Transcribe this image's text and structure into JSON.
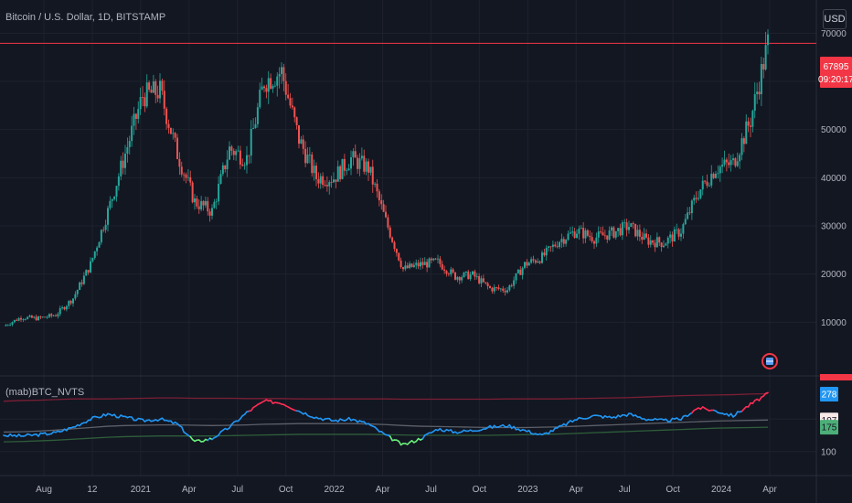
{
  "header": {
    "title": "Bitcoin / U.S. Dollar, 1D, BITSTAMP",
    "currency_button": "USD"
  },
  "price_axis": {
    "ticks": [
      "70000",
      "60000",
      "50000",
      "40000",
      "30000",
      "20000",
      "10000"
    ],
    "last_price": "67895",
    "countdown": "09:20:17"
  },
  "indicator": {
    "name": "(mab)BTC_NVTS",
    "ticks": [
      "200",
      "100"
    ],
    "badges": [
      {
        "text": "278",
        "color": "#2196f3",
        "text_color": "#ffffff"
      },
      {
        "text": "197",
        "color": "#f8e8e8",
        "text_color": "#131722"
      },
      {
        "text": "175",
        "color": "#4caf78",
        "text_color": "#131722"
      }
    ]
  },
  "time_axis": [
    "Aug",
    "12",
    "2021",
    "Apr",
    "Jul",
    "Oct",
    "2022",
    "Apr",
    "Jul",
    "Oct",
    "2023",
    "Apr",
    "Jul",
    "Oct",
    "2024",
    "Apr"
  ],
  "colors": {
    "background": "#131722",
    "up": "#26a69a",
    "down": "#ef5350",
    "last_price_line": "#f23645",
    "nvts": "#2196f3",
    "nvts_high": "#ff2d55",
    "nvts_low": "#69f07a",
    "upper_band": "#7a1f35",
    "mid_band": "#5d6068",
    "lower_band": "#2e5e3a"
  },
  "chart_data": [
    {
      "type": "candlestick",
      "title": "Bitcoin / U.S. Dollar, 1D, BITSTAMP",
      "x": [
        "2020-07",
        "2020-08",
        "2020-09",
        "2020-10",
        "2020-11",
        "2020-12",
        "2021-01",
        "2021-02",
        "2021-03",
        "2021-04",
        "2021-05",
        "2021-06",
        "2021-07",
        "2021-08",
        "2021-09",
        "2021-10",
        "2021-11",
        "2021-12",
        "2022-01",
        "2022-02",
        "2022-03",
        "2022-04",
        "2022-05",
        "2022-06",
        "2022-07",
        "2022-08",
        "2022-09",
        "2022-10",
        "2022-11",
        "2022-12",
        "2023-01",
        "2023-02",
        "2023-03",
        "2023-04",
        "2023-05",
        "2023-06",
        "2023-07",
        "2023-08",
        "2023-09",
        "2023-10",
        "2023-11",
        "2023-12",
        "2024-01",
        "2024-02",
        "2024-03"
      ],
      "values": [
        9200,
        11000,
        10800,
        11500,
        15000,
        22000,
        33000,
        45000,
        57000,
        58000,
        45000,
        35000,
        33000,
        46000,
        44000,
        60000,
        62000,
        48000,
        40000,
        40000,
        44000,
        42000,
        31000,
        21000,
        22000,
        22500,
        19500,
        19800,
        17000,
        16800,
        22000,
        23500,
        27000,
        29000,
        27500,
        28500,
        30000,
        27000,
        26500,
        29000,
        37000,
        42000,
        43000,
        52000,
        67895
      ],
      "ylim": [
        0,
        75000
      ],
      "last_price": 67895
    },
    {
      "type": "line",
      "title": "(mab)BTC_NVTS",
      "x": [
        "2020-07",
        "2020-08",
        "2020-09",
        "2020-10",
        "2020-11",
        "2020-12",
        "2021-01",
        "2021-02",
        "2021-03",
        "2021-04",
        "2021-05",
        "2021-06",
        "2021-07",
        "2021-08",
        "2021-09",
        "2021-10",
        "2021-11",
        "2021-12",
        "2022-01",
        "2022-02",
        "2022-03",
        "2022-04",
        "2022-05",
        "2022-06",
        "2022-07",
        "2022-08",
        "2022-09",
        "2022-10",
        "2022-11",
        "2022-12",
        "2023-01",
        "2023-02",
        "2023-03",
        "2023-04",
        "2023-05",
        "2023-06",
        "2023-07",
        "2023-08",
        "2023-09",
        "2023-10",
        "2023-11",
        "2023-12",
        "2024-01",
        "2024-02",
        "2024-03"
      ],
      "series": [
        {
          "values": [
            150,
            148,
            152,
            158,
            175,
            200,
            215,
            205,
            195,
            200,
            185,
            130,
            140,
            175,
            220,
            255,
            250,
            225,
            205,
            195,
            200,
            185,
            150,
            120,
            140,
            170,
            160,
            165,
            175,
            180,
            165,
            150,
            175,
            200,
            210,
            205,
            215,
            200,
            195,
            200,
            235,
            225,
            210,
            245,
            278
          ]
        },
        {
          "values": [
            255,
            257,
            258,
            260,
            262,
            262,
            262,
            263,
            264,
            265,
            265,
            264,
            264,
            264,
            263,
            263,
            263,
            262,
            262,
            262,
            262,
            262,
            262,
            261,
            261,
            261,
            261,
            261,
            261,
            262,
            262,
            262,
            262,
            263,
            264,
            265,
            266,
            268,
            270,
            272,
            273,
            274,
            275,
            277,
            278
          ]
        },
        {
          "values": [
            160,
            161,
            163,
            166,
            170,
            174,
            178,
            180,
            181,
            182,
            182,
            181,
            180,
            181,
            182,
            184,
            185,
            186,
            186,
            186,
            186,
            185,
            183,
            180,
            178,
            177,
            176,
            175,
            174,
            174,
            174,
            175,
            176,
            178,
            180,
            182,
            184,
            186,
            188,
            190,
            192,
            194,
            195,
            196,
            197
          ]
        },
        {
          "values": [
            130,
            131,
            133,
            135,
            138,
            141,
            144,
            146,
            147,
            148,
            148,
            148,
            148,
            149,
            150,
            151,
            152,
            153,
            153,
            153,
            153,
            153,
            152,
            151,
            150,
            150,
            150,
            150,
            150,
            151,
            152,
            153,
            154,
            156,
            158,
            160,
            162,
            164,
            166,
            168,
            170,
            172,
            173,
            174,
            175
          ]
        }
      ],
      "ylim": [
        60,
        330
      ]
    }
  ]
}
